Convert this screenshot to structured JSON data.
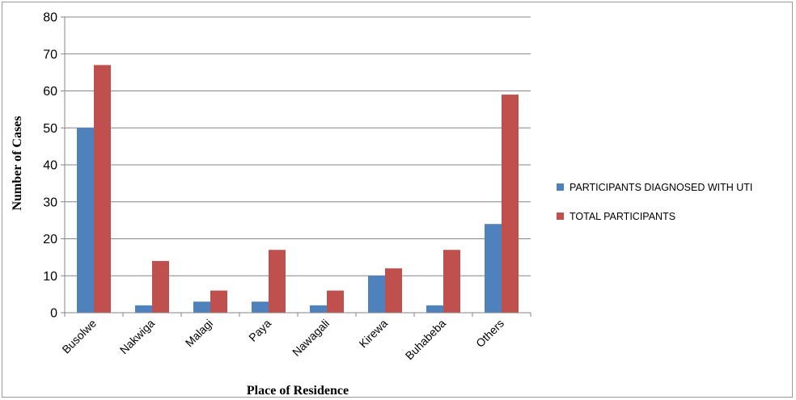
{
  "chart_data": {
    "type": "bar",
    "categories": [
      "Busolwe",
      "Nakwiga",
      "Malagi",
      "Paya",
      "Nawagali",
      "Kirewa",
      "Buhabeba",
      "Others"
    ],
    "series": [
      {
        "name": "PARTICIPANTS DIAGNOSED WITH UTI",
        "values": [
          50,
          2,
          3,
          3,
          2,
          10,
          2,
          24
        ],
        "color": "#4f81bd"
      },
      {
        "name": "TOTAL PARTICIPANTS",
        "values": [
          67,
          14,
          6,
          17,
          6,
          12,
          17,
          59
        ],
        "color": "#c0504d"
      }
    ],
    "xlabel": "Place of Residence",
    "ylabel": "Number of Cases",
    "ylim": [
      0,
      80
    ],
    "yticks": [
      0,
      10,
      20,
      30,
      40,
      50,
      60,
      70,
      80
    ],
    "grid": true,
    "legend_position": "right"
  }
}
